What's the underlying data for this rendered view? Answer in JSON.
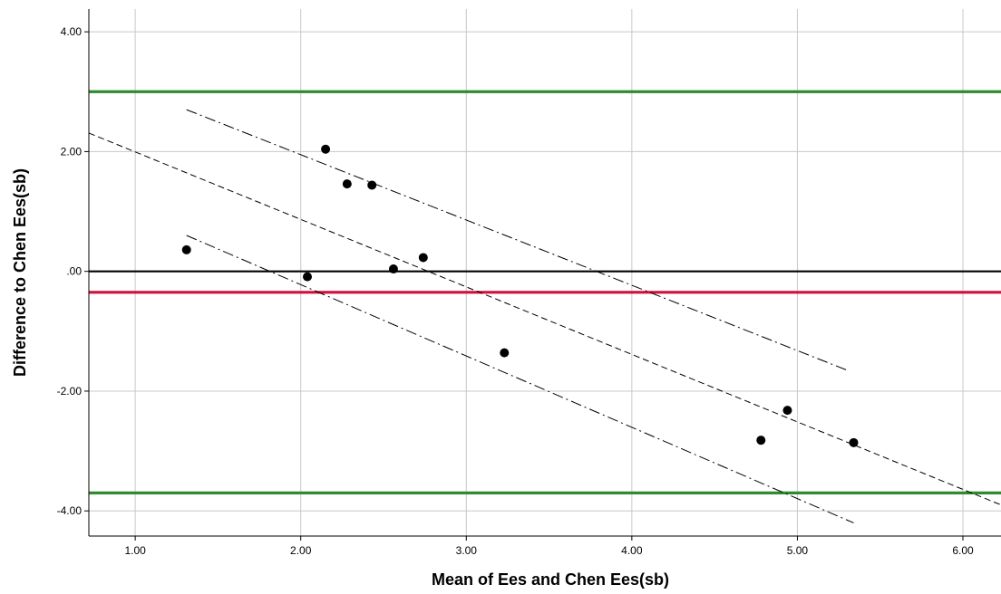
{
  "chart_data": {
    "type": "scatter",
    "title": "",
    "xlabel": "Mean of Ees and Chen Ees(sb)",
    "ylabel": "Difference to Chen Ees(sb)",
    "xlim": [
      0.72,
      6.23
    ],
    "ylim": [
      -4.42,
      4.38
    ],
    "x_ticks": [
      1.0,
      2.0,
      3.0,
      4.0,
      5.0,
      6.0
    ],
    "x_tick_labels": [
      "1.00",
      "2.00",
      "3.00",
      "4.00",
      "5.00",
      "6.00"
    ],
    "y_ticks": [
      4.0,
      2.0,
      0.0,
      -2.0,
      -4.0
    ],
    "y_tick_labels": [
      "4.00",
      "2.00",
      ".00",
      "-2.00",
      "-4.00"
    ],
    "grid": true,
    "points": [
      {
        "x": 1.31,
        "y": 0.36
      },
      {
        "x": 2.04,
        "y": -0.09
      },
      {
        "x": 2.15,
        "y": 2.04
      },
      {
        "x": 2.28,
        "y": 1.46
      },
      {
        "x": 2.43,
        "y": 1.44
      },
      {
        "x": 2.56,
        "y": 0.04
      },
      {
        "x": 2.74,
        "y": 0.23
      },
      {
        "x": 3.23,
        "y": -1.36
      },
      {
        "x": 4.78,
        "y": -2.82
      },
      {
        "x": 4.94,
        "y": -2.32
      },
      {
        "x": 5.34,
        "y": -2.86
      }
    ],
    "reference_lines": [
      {
        "y": 3.0,
        "color": "#2e8b2e"
      },
      {
        "y": 0.0,
        "color": "#000000"
      },
      {
        "y": -0.35,
        "color": "#d0103a"
      },
      {
        "y": -3.7,
        "color": "#2e8b2e"
      }
    ],
    "regression_line": {
      "x": [
        0.72,
        6.23
      ],
      "y": [
        2.31,
        -3.9
      ]
    },
    "confidence_bands": [
      {
        "x": [
          1.31,
          5.3
        ],
        "y": [
          2.7,
          -1.65
        ]
      },
      {
        "x": [
          1.31,
          5.34
        ],
        "y": [
          0.6,
          -4.2
        ]
      }
    ],
    "colors": {
      "points": "#000000",
      "grid": "#c8c8c8"
    }
  }
}
